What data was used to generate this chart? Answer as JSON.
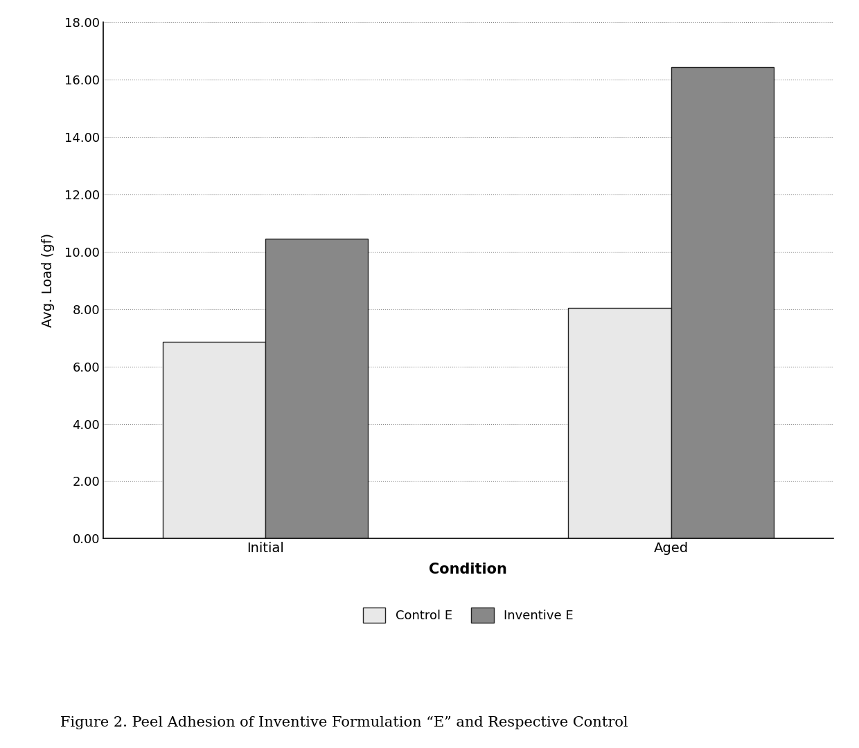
{
  "categories": [
    "Initial",
    "Aged"
  ],
  "control_values": [
    6.85,
    8.05
  ],
  "inventive_values": [
    10.45,
    16.45
  ],
  "ylabel": "Avg. Load (gf)",
  "xlabel": "Condition",
  "ylim": [
    0,
    18.0
  ],
  "yticks": [
    0.0,
    2.0,
    4.0,
    6.0,
    8.0,
    10.0,
    12.0,
    14.0,
    16.0,
    18.0
  ],
  "ytick_labels": [
    "0.00",
    "2.00",
    "4.00",
    "6.00",
    "8.00",
    "10.00",
    "12.00",
    "14.00",
    "16.00",
    "18.00"
  ],
  "legend_labels": [
    "Control E",
    "Inventive E"
  ],
  "control_color": "#e8e8e8",
  "inventive_color": "#888888",
  "bar_edge_color": "#222222",
  "background_color": "#ffffff",
  "figure_caption": "Figure 2. Peel Adhesion of Inventive Formulation “E” and Respective Control",
  "bar_width": 0.38,
  "group_positions": [
    1.0,
    2.5
  ],
  "grid_color": "#888888",
  "axis_label_fontsize": 14,
  "tick_fontsize": 13,
  "legend_fontsize": 13,
  "caption_fontsize": 15
}
